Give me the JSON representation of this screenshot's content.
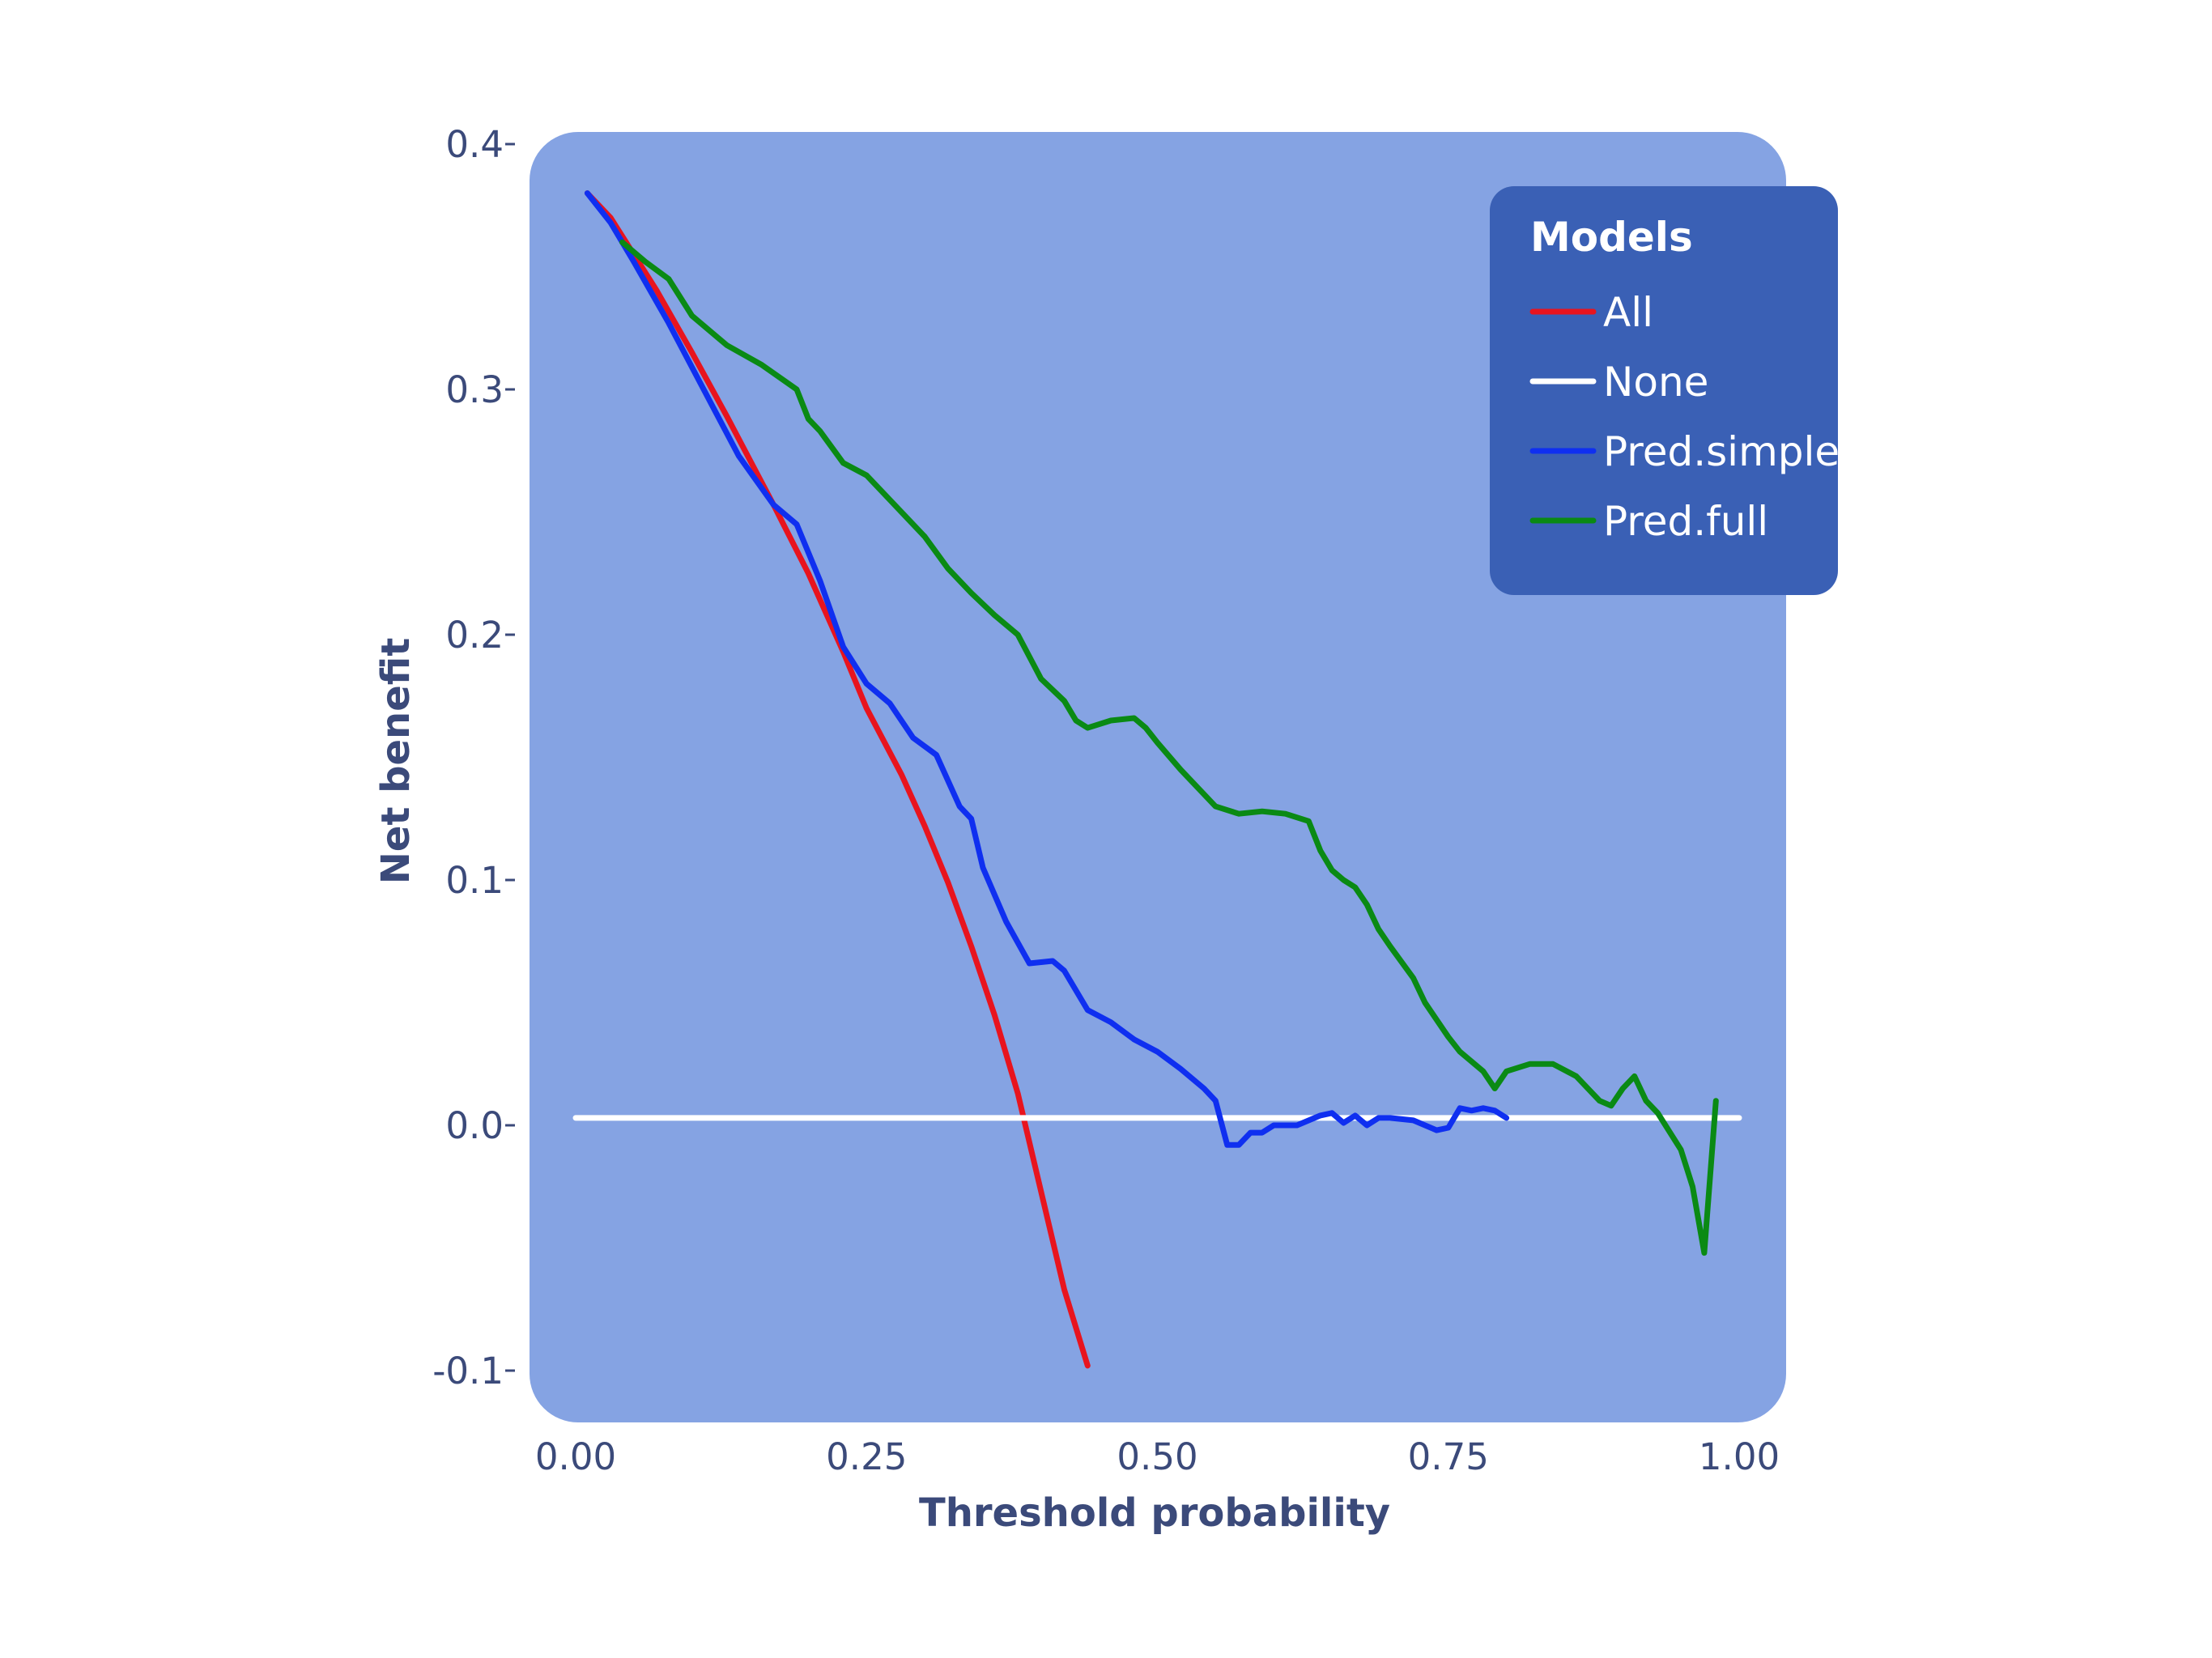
{
  "chart_data": {
    "type": "line",
    "xlabel": "Threshold probability",
    "ylabel": "Net benefit",
    "xlim": [
      -0.03,
      1.03
    ],
    "ylim": [
      -0.12,
      0.405
    ],
    "x_ticks": [
      0.0,
      0.25,
      0.5,
      0.75,
      1.0
    ],
    "x_tick_labels": [
      "0.00",
      "0.25",
      "0.50",
      "0.75",
      "1.00"
    ],
    "y_ticks": [
      -0.1,
      0.0,
      0.1,
      0.2,
      0.3,
      0.4
    ],
    "y_tick_labels": [
      "-0.1",
      "0.0",
      "0.1",
      "0.2",
      "0.3",
      "0.4"
    ],
    "legend_title": "Models",
    "legend_position": "top-right",
    "grid": false,
    "panel_color": "#85a3e3",
    "legend_bg": "#3a60b5",
    "series": [
      {
        "name": "All",
        "color": "#e8141e",
        "x": [
          0.01,
          0.03,
          0.05,
          0.07,
          0.1,
          0.13,
          0.15,
          0.17,
          0.2,
          0.23,
          0.25,
          0.28,
          0.3,
          0.32,
          0.34,
          0.36,
          0.38,
          0.4,
          0.42,
          0.44
        ],
        "y": [
          0.38,
          0.37,
          0.355,
          0.34,
          0.315,
          0.289,
          0.271,
          0.253,
          0.225,
          0.193,
          0.17,
          0.143,
          0.122,
          0.099,
          0.073,
          0.045,
          0.013,
          -0.027,
          -0.067,
          -0.098
        ]
      },
      {
        "name": "None",
        "color": "#ffffff",
        "x": [
          0.0,
          1.0
        ],
        "y": [
          0.003,
          0.003
        ]
      },
      {
        "name": "Pred.simple",
        "color": "#0f2ff0",
        "x": [
          0.01,
          0.03,
          0.05,
          0.08,
          0.11,
          0.14,
          0.17,
          0.19,
          0.21,
          0.23,
          0.25,
          0.27,
          0.29,
          0.31,
          0.33,
          0.34,
          0.35,
          0.37,
          0.39,
          0.41,
          0.42,
          0.44,
          0.46,
          0.48,
          0.5,
          0.52,
          0.54,
          0.55,
          0.56,
          0.57,
          0.58,
          0.59,
          0.6,
          0.62,
          0.64,
          0.65,
          0.66,
          0.67,
          0.68,
          0.69,
          0.7,
          0.72,
          0.74,
          0.75,
          0.76,
          0.77,
          0.78,
          0.79,
          0.8
        ],
        "y": [
          0.38,
          0.368,
          0.352,
          0.327,
          0.3,
          0.273,
          0.253,
          0.245,
          0.222,
          0.195,
          0.18,
          0.172,
          0.158,
          0.151,
          0.13,
          0.125,
          0.105,
          0.083,
          0.066,
          0.067,
          0.063,
          0.047,
          0.042,
          0.035,
          0.03,
          0.023,
          0.015,
          0.01,
          -0.008,
          -0.008,
          -0.003,
          -0.003,
          0.0,
          0.0,
          0.004,
          0.005,
          0.001,
          0.004,
          0.0,
          0.003,
          0.003,
          0.002,
          -0.002,
          -0.001,
          0.007,
          0.006,
          0.007,
          0.006,
          0.003
        ]
      },
      {
        "name": "Pred.full",
        "color": "#0a8a14",
        "x": [
          0.04,
          0.06,
          0.08,
          0.1,
          0.13,
          0.16,
          0.19,
          0.2,
          0.21,
          0.23,
          0.25,
          0.27,
          0.3,
          0.32,
          0.34,
          0.36,
          0.38,
          0.4,
          0.42,
          0.43,
          0.44,
          0.46,
          0.48,
          0.49,
          0.5,
          0.52,
          0.55,
          0.57,
          0.59,
          0.61,
          0.63,
          0.64,
          0.65,
          0.66,
          0.67,
          0.68,
          0.69,
          0.7,
          0.72,
          0.73,
          0.75,
          0.76,
          0.78,
          0.79,
          0.8,
          0.82,
          0.84,
          0.86,
          0.88,
          0.89,
          0.9,
          0.91,
          0.92,
          0.93,
          0.95,
          0.96,
          0.97,
          0.98
        ],
        "y": [
          0.36,
          0.352,
          0.345,
          0.33,
          0.318,
          0.31,
          0.3,
          0.288,
          0.283,
          0.27,
          0.265,
          0.255,
          0.24,
          0.227,
          0.217,
          0.208,
          0.2,
          0.182,
          0.173,
          0.165,
          0.162,
          0.165,
          0.166,
          0.162,
          0.156,
          0.145,
          0.13,
          0.127,
          0.128,
          0.127,
          0.124,
          0.112,
          0.104,
          0.1,
          0.097,
          0.09,
          0.08,
          0.073,
          0.06,
          0.05,
          0.036,
          0.03,
          0.022,
          0.015,
          0.022,
          0.025,
          0.025,
          0.02,
          0.01,
          0.008,
          0.015,
          0.02,
          0.01,
          0.005,
          -0.01,
          -0.025,
          -0.052,
          0.01
        ]
      }
    ]
  }
}
